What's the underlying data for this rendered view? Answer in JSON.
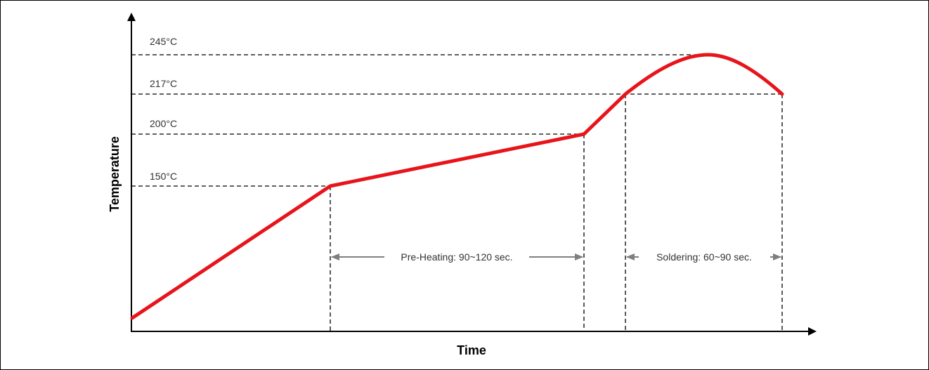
{
  "chart_data": {
    "type": "line",
    "title": "",
    "xlabel": "Time",
    "ylabel": "Temperature",
    "grid": false,
    "y_ticks": [
      "245°C",
      "217°C",
      "200°C",
      "150°C"
    ],
    "spans": [
      {
        "label": "Pre-Heating: 90~120 sec."
      },
      {
        "label": "Soldering: 60~90 sec."
      }
    ],
    "series": [
      {
        "color": "#e8141b"
      }
    ],
    "colors": {
      "curve": "#e8141b",
      "guides": "#000000",
      "spans": "#7f7f7f",
      "axes": "#000000"
    }
  }
}
